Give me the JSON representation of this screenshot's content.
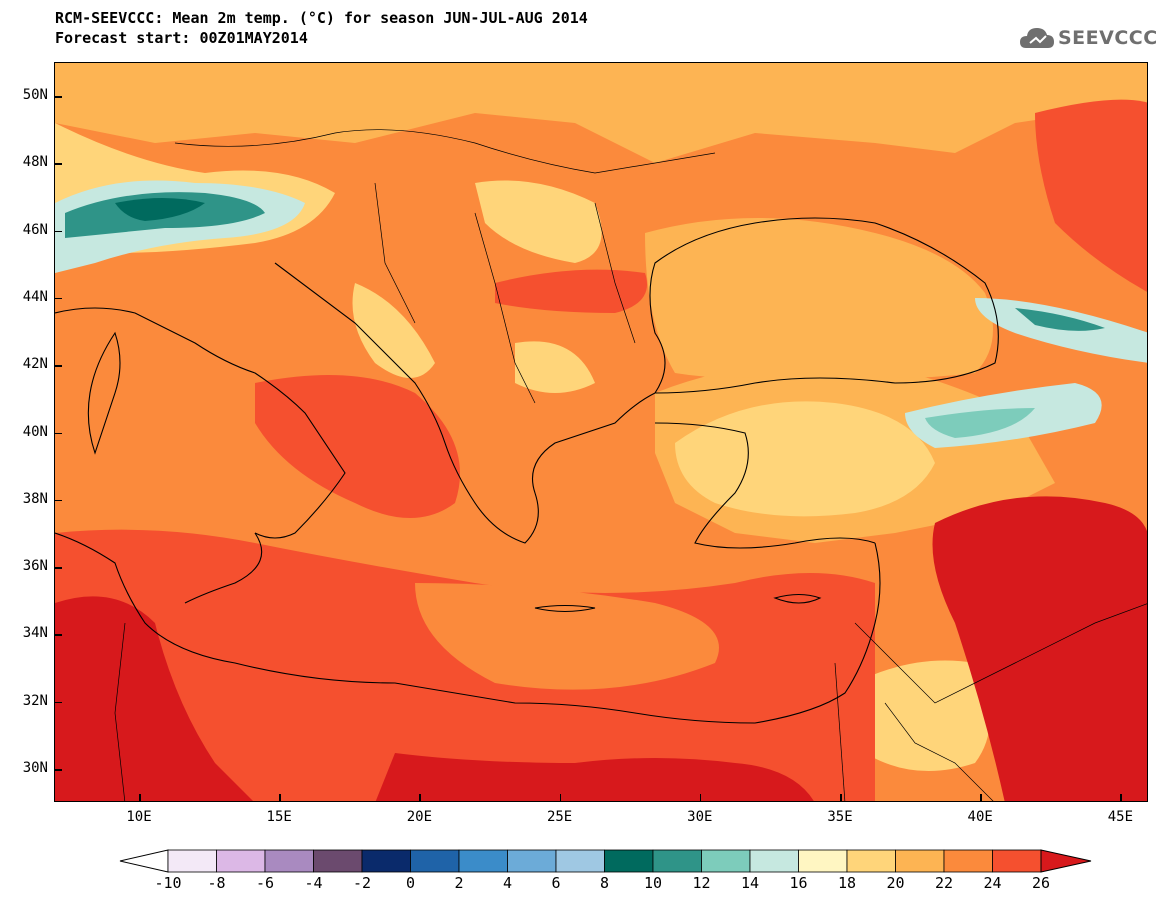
{
  "header": {
    "title_line1": "RCM-SEEVCCC: Mean 2m temp. (°C) for season JUN-JUL-AUG 2014",
    "title_line2": "Forecast start: 00Z01MAY2014"
  },
  "logo": {
    "text": "SEEVCCC",
    "icon": "cloud-icon"
  },
  "map": {
    "lat_labels": [
      "50N",
      "48N",
      "46N",
      "44N",
      "42N",
      "40N",
      "38N",
      "36N",
      "34N",
      "32N",
      "30N"
    ],
    "lon_labels": [
      "10E",
      "15E",
      "20E",
      "25E",
      "30E",
      "35E",
      "40E",
      "45E"
    ]
  },
  "colorbar": {
    "labels": [
      "-10",
      "-8",
      "-6",
      "-4",
      "-2",
      "0",
      "2",
      "4",
      "6",
      "8",
      "10",
      "12",
      "14",
      "16",
      "18",
      "20",
      "22",
      "24",
      "26"
    ],
    "colors": [
      "#f3e9f7",
      "#dcb8e6",
      "#a98ac0",
      "#6b4a6e",
      "#0a2a6b",
      "#1f63a8",
      "#3b8cc9",
      "#6cabd8",
      "#9fc8e3",
      "#006a5e",
      "#2f9488",
      "#7dccbb",
      "#c6e8e0",
      "#fff6c2",
      "#ffd57a",
      "#fdb453",
      "#fb8a3c",
      "#f5502f"
    ],
    "under_color": "#ffffff",
    "over_color": "#d7191c"
  }
}
